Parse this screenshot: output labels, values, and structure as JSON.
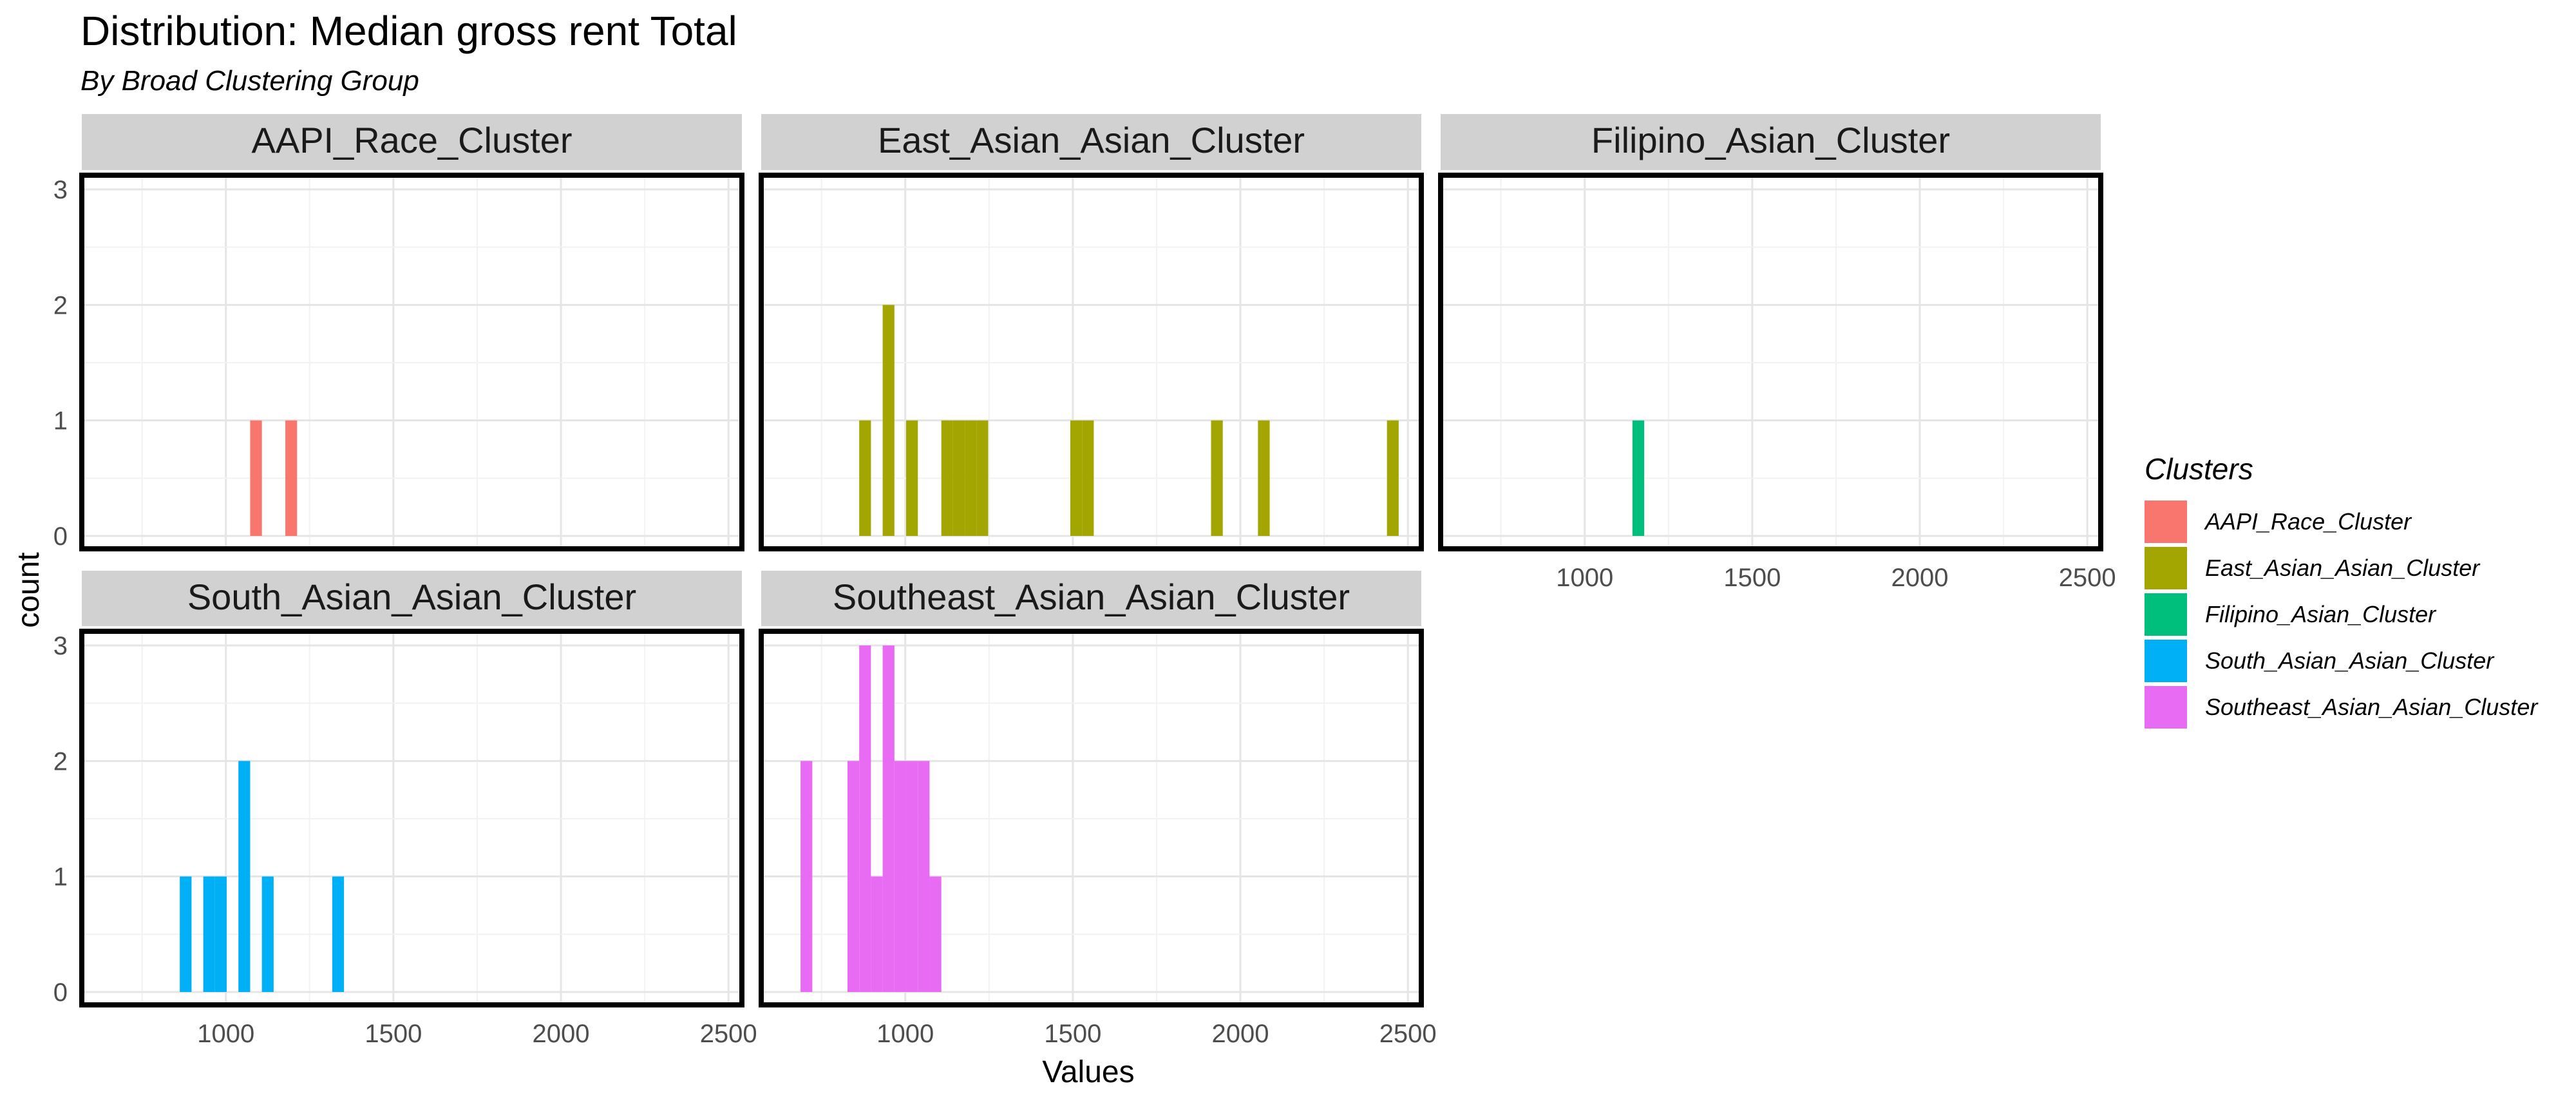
{
  "chart_data": {
    "type": "bar",
    "title": "Distribution: Median gross rent Total",
    "subtitle": "By Broad Clustering Group",
    "xlabel": "Values",
    "ylabel": "count",
    "xlim": [
      570,
      2540
    ],
    "ylim": [
      0,
      3
    ],
    "x_ticks": [
      1000,
      1500,
      2000,
      2500
    ],
    "y_ticks": [
      0,
      1,
      2,
      3
    ],
    "bin_width": 35,
    "grid": true,
    "legend_title": "Clusters",
    "legend_position": "right",
    "panels": [
      {
        "name": "AAPI_Race_Cluster",
        "color": "#F8766D",
        "bins": [
          {
            "x": 1090,
            "count": 1
          },
          {
            "x": 1195,
            "count": 1
          }
        ]
      },
      {
        "name": "East_Asian_Asian_Cluster",
        "color": "#A3A500",
        "bins": [
          {
            "x": 880,
            "count": 1
          },
          {
            "x": 950,
            "count": 2
          },
          {
            "x": 1020,
            "count": 1
          },
          {
            "x": 1125,
            "count": 1
          },
          {
            "x": 1160,
            "count": 1
          },
          {
            "x": 1195,
            "count": 1
          },
          {
            "x": 1230,
            "count": 1
          },
          {
            "x": 1510,
            "count": 1
          },
          {
            "x": 1545,
            "count": 1
          },
          {
            "x": 1930,
            "count": 1
          },
          {
            "x": 2070,
            "count": 1
          },
          {
            "x": 2455,
            "count": 1
          }
        ]
      },
      {
        "name": "Filipino_Asian_Cluster",
        "color": "#00BF7D",
        "bins": [
          {
            "x": 1160,
            "count": 1
          }
        ]
      },
      {
        "name": "South_Asian_Asian_Cluster",
        "color": "#00B0F6",
        "bins": [
          {
            "x": 880,
            "count": 1
          },
          {
            "x": 950,
            "count": 1
          },
          {
            "x": 985,
            "count": 1
          },
          {
            "x": 1055,
            "count": 2
          },
          {
            "x": 1125,
            "count": 1
          },
          {
            "x": 1335,
            "count": 1
          }
        ]
      },
      {
        "name": "Southeast_Asian_Asian_Cluster",
        "color": "#E76BF3",
        "bins": [
          {
            "x": 705,
            "count": 2
          },
          {
            "x": 845,
            "count": 2
          },
          {
            "x": 880,
            "count": 3
          },
          {
            "x": 915,
            "count": 1
          },
          {
            "x": 950,
            "count": 3
          },
          {
            "x": 985,
            "count": 2
          },
          {
            "x": 1020,
            "count": 2
          },
          {
            "x": 1055,
            "count": 2
          },
          {
            "x": 1090,
            "count": 1
          }
        ]
      }
    ]
  }
}
